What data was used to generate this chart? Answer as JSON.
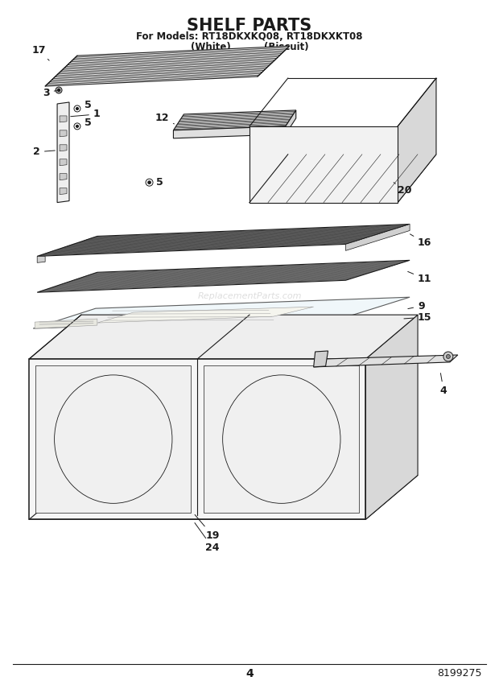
{
  "title": "SHELF PARTS",
  "subtitle1": "For Models: RT18DKXKQ08, RT18DKXKT08",
  "subtitle2": "(White)          (Biscuit)",
  "page_number": "4",
  "part_number": "8199275",
  "watermark": "ReplacementParts.com",
  "background_color": "#ffffff",
  "line_color": "#1a1a1a",
  "title_fontsize": 15,
  "subtitle_fontsize": 8.5,
  "label_fontsize": 9,
  "footer_fontsize": 9
}
